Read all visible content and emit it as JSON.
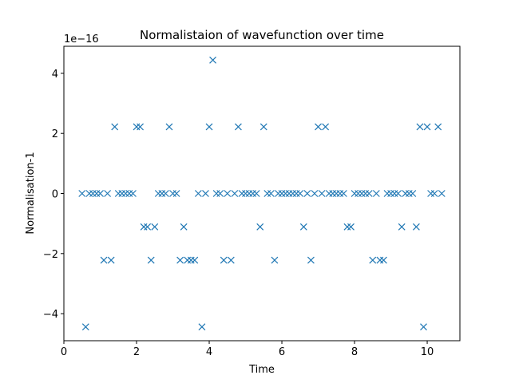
{
  "chart_data": {
    "type": "scatter",
    "title": "Normalistaion of wavefunction over time",
    "xlabel": "Time",
    "ylabel": "Normalisation-1",
    "y_offset_label": "1e−16",
    "xlim": [
      0,
      10.9
    ],
    "ylim": [
      -4.9,
      4.9
    ],
    "xticks": [
      0,
      2,
      4,
      6,
      8,
      10
    ],
    "yticks": [
      -4,
      -2,
      0,
      2,
      4
    ],
    "xtick_labels": [
      "0",
      "2",
      "4",
      "6",
      "8",
      "10"
    ],
    "ytick_labels": [
      "−4",
      "−2",
      "0",
      "2",
      "4"
    ],
    "grid": false,
    "marker": "x",
    "series_color": "#1f77b4",
    "series": [
      {
        "x": [
          0.5,
          0.6,
          0.7,
          0.8,
          0.9,
          1.0,
          1.1,
          1.2,
          1.3,
          1.4,
          1.5,
          1.6,
          1.7,
          1.8,
          1.9,
          2.0,
          2.1,
          2.2,
          2.3,
          2.4,
          2.5,
          2.6,
          2.7,
          2.8,
          2.9,
          3.0,
          3.1,
          3.2,
          3.3,
          3.4,
          3.5,
          3.6,
          3.7,
          3.8,
          3.9,
          4.0,
          4.1,
          4.2,
          4.3,
          4.4,
          4.5,
          4.6,
          4.7,
          4.8,
          4.9,
          5.0,
          5.1,
          5.2,
          5.3,
          5.4,
          5.5,
          5.6,
          5.7,
          5.8,
          5.9,
          6.0,
          6.1,
          6.2,
          6.3,
          6.4,
          6.5,
          6.6,
          6.7,
          6.8,
          6.9,
          7.0,
          7.1,
          7.2,
          7.3,
          7.4,
          7.5,
          7.6,
          7.7,
          7.8,
          7.9,
          8.0,
          8.1,
          8.2,
          8.3,
          8.4,
          8.5,
          8.6,
          8.7,
          8.8,
          8.9,
          9.0,
          9.1,
          9.2,
          9.3,
          9.4,
          9.5,
          9.6,
          9.7,
          9.8,
          9.9,
          10.0,
          10.1,
          10.2,
          10.3,
          10.4
        ],
        "y": [
          0,
          -4.44,
          0,
          0,
          0,
          0,
          -2.22,
          0,
          -2.22,
          2.22,
          0,
          0,
          0,
          0,
          0,
          2.22,
          2.22,
          -1.11,
          -1.11,
          -2.22,
          -1.11,
          0,
          0,
          0,
          2.22,
          0,
          0,
          -2.22,
          -1.11,
          -2.22,
          -2.22,
          -2.22,
          0,
          -4.44,
          0,
          2.22,
          4.44,
          0,
          0,
          -2.22,
          0,
          -2.22,
          0,
          2.22,
          0,
          0,
          0,
          0,
          0,
          -1.11,
          2.22,
          0,
          0,
          -2.22,
          0,
          0,
          0,
          0,
          0,
          0,
          0,
          -1.11,
          0,
          -2.22,
          0,
          2.22,
          0,
          2.22,
          0,
          0,
          0,
          0,
          0,
          -1.11,
          -1.11,
          0,
          0,
          0,
          0,
          0,
          -2.22,
          0,
          -2.22,
          -2.22,
          0,
          0,
          0,
          0,
          -1.11,
          0,
          0,
          0,
          -1.11,
          2.22,
          -4.44,
          2.22,
          0,
          0,
          2.22,
          0
        ]
      }
    ]
  }
}
